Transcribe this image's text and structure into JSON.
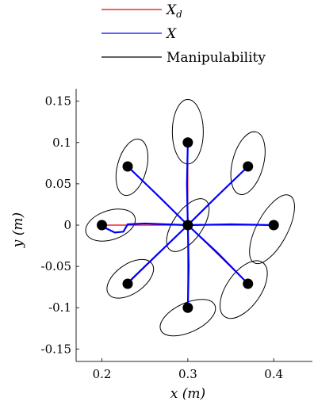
{
  "chart_data": {
    "type": "line",
    "title": "",
    "xlabel": "x (m)",
    "ylabel": "y (m)",
    "xlim": [
      0.17,
      0.445
    ],
    "ylim": [
      -0.165,
      0.165
    ],
    "xticks": [
      "0.2",
      "0.3",
      "0.4"
    ],
    "yticks": [
      "0.15",
      "0.1",
      "0.05",
      "0",
      "-0.05",
      "-0.1",
      "-0.15"
    ],
    "xtick_values": [
      0.2,
      0.3,
      0.4
    ],
    "ytick_values": [
      0.15,
      0.1,
      0.05,
      0,
      -0.05,
      -0.1,
      -0.15
    ],
    "legend": {
      "placement": "top-center",
      "entries": [
        "X_d",
        "X",
        "Manipulability"
      ]
    },
    "colors": {
      "Xd": "#e8000b",
      "X": "#0000ff",
      "manip": "#000000",
      "points": "#000000"
    },
    "center": [
      0.3,
      0
    ],
    "targets": [
      {
        "x": 0.3,
        "y": 0.1
      },
      {
        "x": 0.37,
        "y": 0.071
      },
      {
        "x": 0.4,
        "y": 0
      },
      {
        "x": 0.37,
        "y": -0.071
      },
      {
        "x": 0.3,
        "y": -0.1
      },
      {
        "x": 0.23,
        "y": -0.071
      },
      {
        "x": 0.2,
        "y": 0
      },
      {
        "x": 0.23,
        "y": 0.071
      }
    ],
    "series": [
      {
        "name": "X_d",
        "lines": [
          [
            [
              0.3,
              0
            ],
            [
              0.3,
              0.1
            ]
          ],
          [
            [
              0.3,
              0
            ],
            [
              0.37,
              0.071
            ]
          ],
          [
            [
              0.3,
              0
            ],
            [
              0.4,
              0
            ]
          ],
          [
            [
              0.3,
              0
            ],
            [
              0.37,
              -0.071
            ]
          ],
          [
            [
              0.3,
              0
            ],
            [
              0.3,
              -0.1
            ]
          ],
          [
            [
              0.3,
              0
            ],
            [
              0.23,
              -0.071
            ]
          ],
          [
            [
              0.3,
              0
            ],
            [
              0.2,
              0
            ]
          ],
          [
            [
              0.3,
              0
            ],
            [
              0.23,
              0.071
            ]
          ]
        ]
      },
      {
        "name": "X",
        "lines": [
          [
            [
              0.3,
              0
            ],
            [
              0.299,
              0.05
            ],
            [
              0.3,
              0.1
            ]
          ],
          [
            [
              0.3,
              0
            ],
            [
              0.335,
              0.036
            ],
            [
              0.37,
              0.071
            ]
          ],
          [
            [
              0.3,
              0
            ],
            [
              0.35,
              0.001
            ],
            [
              0.4,
              0
            ]
          ],
          [
            [
              0.3,
              0
            ],
            [
              0.336,
              -0.035
            ],
            [
              0.37,
              -0.071
            ]
          ],
          [
            [
              0.3,
              0
            ],
            [
              0.301,
              -0.05
            ],
            [
              0.3,
              -0.1
            ]
          ],
          [
            [
              0.3,
              0
            ],
            [
              0.266,
              -0.034
            ],
            [
              0.235,
              -0.065
            ],
            [
              0.23,
              -0.071
            ]
          ],
          [
            [
              0.3,
              0
            ],
            [
              0.25,
              0.002
            ],
            [
              0.23,
              0.001
            ],
            [
              0.225,
              -0.008
            ],
            [
              0.215,
              -0.009
            ],
            [
              0.205,
              -0.004
            ],
            [
              0.2,
              0
            ]
          ],
          [
            [
              0.3,
              0
            ],
            [
              0.265,
              0.036
            ],
            [
              0.23,
              0.071
            ]
          ]
        ]
      }
    ],
    "ellipses": [
      {
        "cx": 0.3,
        "cy": 0.113,
        "rx": 0.018,
        "ry": 0.039,
        "angle": 0
      },
      {
        "cx": 0.37,
        "cy": 0.075,
        "rx": 0.018,
        "ry": 0.039,
        "angle": 15
      },
      {
        "cx": 0.398,
        "cy": -0.005,
        "rx": 0.018,
        "ry": 0.046,
        "angle": 28
      },
      {
        "cx": 0.365,
        "cy": -0.078,
        "rx": 0.02,
        "ry": 0.04,
        "angle": 35
      },
      {
        "cx": 0.3,
        "cy": -0.112,
        "rx": 0.017,
        "ry": 0.036,
        "angle": 65
      },
      {
        "cx": 0.233,
        "cy": -0.065,
        "rx": 0.017,
        "ry": 0.032,
        "angle": 55
      },
      {
        "cx": 0.21,
        "cy": 0,
        "rx": 0.017,
        "ry": 0.031,
        "angle": 72
      },
      {
        "cx": 0.235,
        "cy": 0.07,
        "rx": 0.017,
        "ry": 0.035,
        "angle": 15
      },
      {
        "cx": 0.3,
        "cy": 0,
        "rx": 0.017,
        "ry": 0.037,
        "angle": 35
      }
    ]
  }
}
